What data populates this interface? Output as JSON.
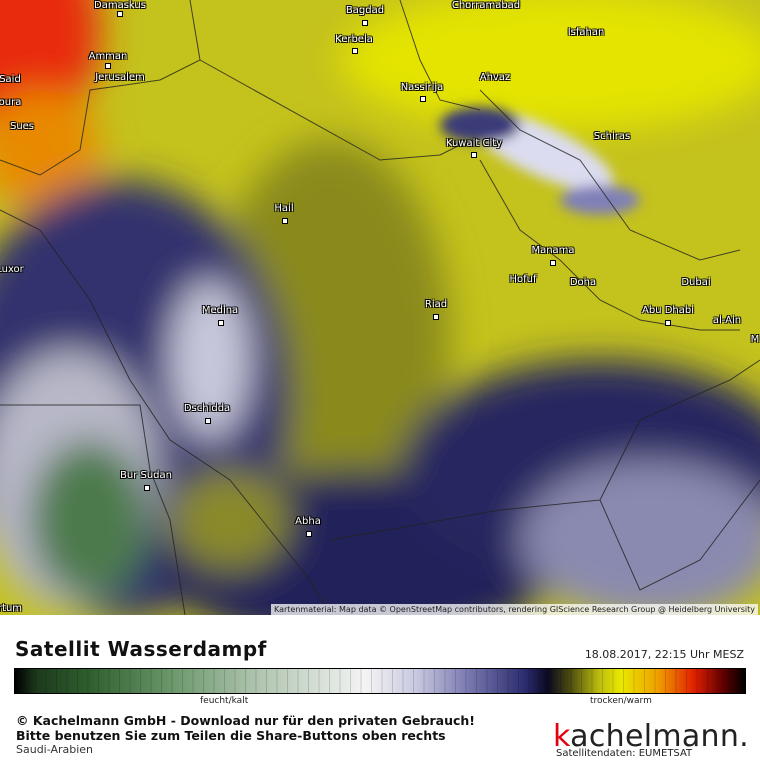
{
  "map": {
    "cities": [
      "Damaskus",
      "Bagdad",
      "Chorramabad",
      "Kerbela",
      "Isfahan",
      "Amman",
      "Jerusalem",
      "Said",
      "oura",
      "Nassirija",
      "Ahvaz",
      "Sues",
      "Kuwait City",
      "Schiras",
      "Hail",
      "Manama",
      "Luxor",
      "Hofuf",
      "Doha",
      "Dubai",
      "Riad",
      "Medina",
      "Abu Dhabi",
      "al-Ain",
      "M",
      "Dschidda",
      "Bur Sudan",
      "Abha",
      "rtum"
    ],
    "attribution": "Kartenmaterial: Map data © OpenStreetMap contributors, rendering GIScience Research Group @ Heidelberg University"
  },
  "footer": {
    "title": "Satellit Wasserdampf",
    "timestamp": "18.08.2017, 22:15 Uhr MESZ",
    "legend_low": "feucht/kalt",
    "legend_high": "trocken/warm",
    "copyright_line1": "© Kachelmann GmbH - Download nur für den privaten Gebrauch!",
    "copyright_line2": "Bitte benutzen Sie zum Teilen die Share-Buttons oben rechts",
    "region": "Saudi-Arabien",
    "logo": "kachelmann.",
    "source": "Satellitendaten: EUMETSAT"
  }
}
